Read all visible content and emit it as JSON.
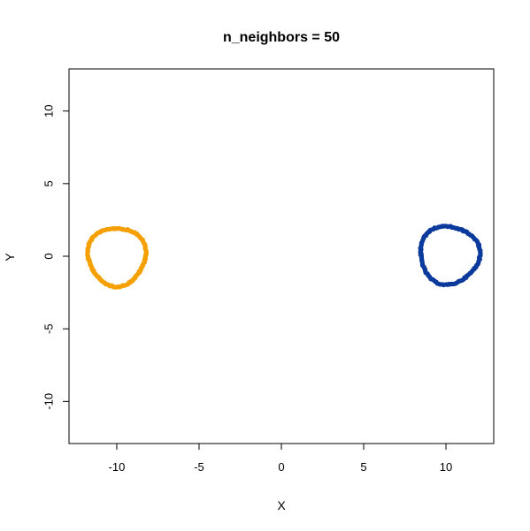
{
  "chart_data": {
    "type": "scatter",
    "title": "n_neighbors = 50",
    "xlabel": "X",
    "ylabel": "Y",
    "xlim": [
      -12.9,
      12.9
    ],
    "ylim": [
      -12.9,
      12.9
    ],
    "x_ticks": [
      -10,
      -5,
      0,
      5,
      10
    ],
    "x_tick_labels": [
      "-10",
      "-5",
      "0",
      "5",
      "10"
    ],
    "y_ticks": [
      -10,
      -5,
      0,
      5,
      10
    ],
    "y_tick_labels": [
      "-10",
      "-5",
      "0",
      "5",
      "10"
    ],
    "grid": false,
    "legend": "none",
    "series": [
      {
        "color": "#F5A000",
        "shape": "ring",
        "center": [
          -10.0,
          0.0
        ],
        "radius_x": 1.75,
        "radius_y": 2.0,
        "n_points": 150
      },
      {
        "color": "#0B3A9C",
        "shape": "ring",
        "center": [
          10.2,
          0.1
        ],
        "radius_x": 1.8,
        "radius_y": 2.0,
        "n_points": 150
      }
    ]
  }
}
